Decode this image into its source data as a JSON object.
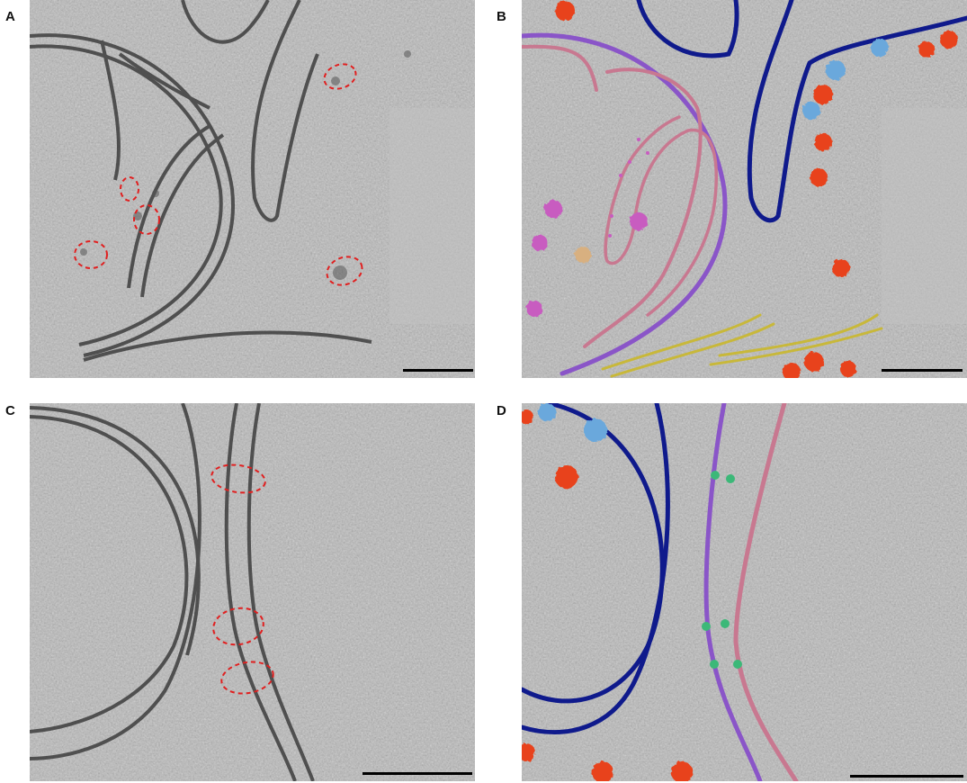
{
  "figure": {
    "panels": [
      {
        "label": "A"
      },
      {
        "label": "B"
      },
      {
        "label": "C"
      },
      {
        "label": "D"
      }
    ]
  },
  "colors": {
    "background_gray": "#b8b8b8",
    "membrane_dark": "#3d3d3d",
    "annotation_red": "#e02020",
    "outer_membrane_navy": "#0f1a8c",
    "inner_membrane_purple": "#8a55c8",
    "er_membrane_pink": "#c87890",
    "ribosome_red": "#e8431a",
    "blue_complex": "#6aa8dc",
    "magenta_complex": "#c85cc0",
    "tan_complex": "#d8b080",
    "filament_yellow": "#c8b83a",
    "tether_green": "#3cb878",
    "scale_bar": "#000000"
  }
}
